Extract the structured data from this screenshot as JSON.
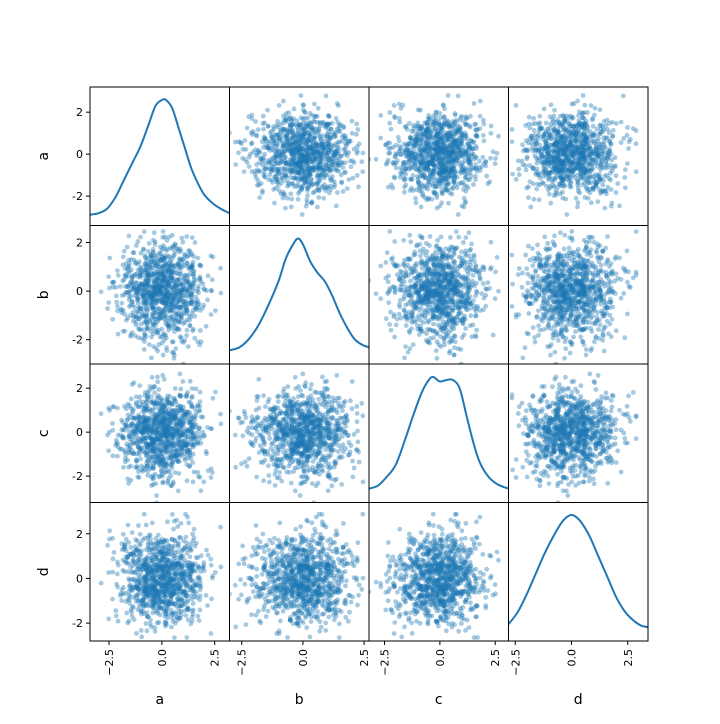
{
  "chart_data": {
    "type": "scatter-matrix",
    "variables": [
      "a",
      "b",
      "c",
      "d"
    ],
    "ranges": {
      "a": [
        -3.4,
        3.2
      ],
      "b": [
        -3.0,
        2.7
      ],
      "c": [
        -3.2,
        3.1
      ],
      "d": [
        -2.8,
        3.4
      ]
    },
    "tick_values": [
      -2,
      0,
      2
    ],
    "x_tick_values": [
      -2.5,
      0.0,
      2.5
    ],
    "tick_labels": {
      "y": {
        "-2": "-2",
        "0": "0",
        "2": "2"
      },
      "x": {
        "-2.5": "−2.5",
        "0": "0.0",
        "2.5": "2.5"
      }
    },
    "diagonal": "kde",
    "offdiagonal": "scatter",
    "kde": {
      "a": [
        [
          -3.4,
          0.01
        ],
        [
          -3.0,
          0.015
        ],
        [
          -2.6,
          0.03
        ],
        [
          -2.2,
          0.07
        ],
        [
          -1.8,
          0.13
        ],
        [
          -1.4,
          0.19
        ],
        [
          -1.0,
          0.25
        ],
        [
          -0.6,
          0.33
        ],
        [
          -0.3,
          0.39
        ],
        [
          0.0,
          0.41
        ],
        [
          0.2,
          0.41
        ],
        [
          0.5,
          0.38
        ],
        [
          0.8,
          0.31
        ],
        [
          1.1,
          0.24
        ],
        [
          1.4,
          0.17
        ],
        [
          1.7,
          0.12
        ],
        [
          2.0,
          0.08
        ],
        [
          2.4,
          0.05
        ],
        [
          2.8,
          0.03
        ],
        [
          3.2,
          0.015
        ]
      ],
      "b": [
        [
          -3.0,
          0.02
        ],
        [
          -2.6,
          0.03
        ],
        [
          -2.2,
          0.06
        ],
        [
          -1.8,
          0.11
        ],
        [
          -1.4,
          0.18
        ],
        [
          -1.0,
          0.26
        ],
        [
          -0.7,
          0.34
        ],
        [
          -0.4,
          0.39
        ],
        [
          -0.2,
          0.41
        ],
        [
          0.0,
          0.39
        ],
        [
          0.3,
          0.33
        ],
        [
          0.6,
          0.29
        ],
        [
          0.9,
          0.26
        ],
        [
          1.2,
          0.21
        ],
        [
          1.5,
          0.15
        ],
        [
          1.8,
          0.1
        ],
        [
          2.1,
          0.06
        ],
        [
          2.4,
          0.04
        ],
        [
          2.7,
          0.03
        ]
      ],
      "c": [
        [
          -3.2,
          0.02
        ],
        [
          -2.8,
          0.03
        ],
        [
          -2.4,
          0.06
        ],
        [
          -2.0,
          0.1
        ],
        [
          -1.6,
          0.18
        ],
        [
          -1.2,
          0.27
        ],
        [
          -0.8,
          0.35
        ],
        [
          -0.5,
          0.39
        ],
        [
          -0.3,
          0.4
        ],
        [
          0.0,
          0.385
        ],
        [
          0.3,
          0.39
        ],
        [
          0.6,
          0.39
        ],
        [
          0.9,
          0.36
        ],
        [
          1.2,
          0.27
        ],
        [
          1.5,
          0.18
        ],
        [
          1.8,
          0.11
        ],
        [
          2.2,
          0.06
        ],
        [
          2.6,
          0.035
        ],
        [
          3.1,
          0.02
        ]
      ],
      "d": [
        [
          -2.8,
          0.03
        ],
        [
          -2.4,
          0.07
        ],
        [
          -2.0,
          0.13
        ],
        [
          -1.6,
          0.2
        ],
        [
          -1.2,
          0.27
        ],
        [
          -0.8,
          0.33
        ],
        [
          -0.4,
          0.38
        ],
        [
          -0.1,
          0.4
        ],
        [
          0.1,
          0.4
        ],
        [
          0.4,
          0.38
        ],
        [
          0.8,
          0.33
        ],
        [
          1.2,
          0.26
        ],
        [
          1.6,
          0.19
        ],
        [
          2.0,
          0.12
        ],
        [
          2.4,
          0.07
        ],
        [
          2.8,
          0.04
        ],
        [
          3.1,
          0.025
        ],
        [
          3.4,
          0.02
        ]
      ]
    },
    "samples_per_panel": 1000,
    "distribution": "standard normal (independent)",
    "point_color": "#1f77b4",
    "point_alpha": 0.4
  }
}
